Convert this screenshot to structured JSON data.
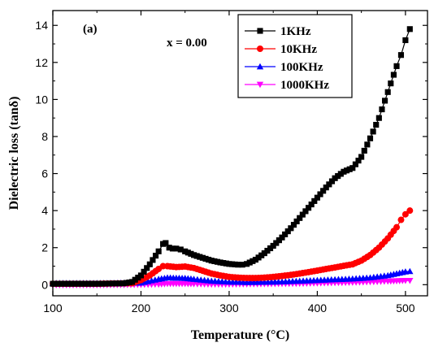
{
  "chart_data": {
    "type": "scatter",
    "panel_label": "(a)",
    "annotation": "x = 0.00",
    "xlabel": "Temperature (°C)",
    "ylabel": "Dielectric loss (tanδ)",
    "xlim": [
      100,
      525
    ],
    "ylim": [
      -0.6,
      14.8
    ],
    "xticks": [
      100,
      200,
      300,
      400,
      500
    ],
    "yticks": [
      0,
      2,
      4,
      6,
      8,
      10,
      12,
      14
    ],
    "grid": false,
    "legend_position": "top-right",
    "series": [
      {
        "name": "1KHz",
        "color": "#000000",
        "marker": "square",
        "x": [
          100,
          150,
          180,
          190,
          200,
          210,
          220,
          225,
          228,
          232,
          236,
          240,
          245,
          250,
          260,
          270,
          280,
          290,
          300,
          310,
          315,
          320,
          330,
          340,
          350,
          360,
          370,
          380,
          390,
          400,
          410,
          420,
          430,
          440,
          450,
          460,
          470,
          480,
          490,
          495,
          500,
          505
        ],
        "y": [
          0.05,
          0.05,
          0.07,
          0.15,
          0.5,
          1.1,
          1.8,
          2.2,
          2.25,
          2.0,
          1.95,
          1.95,
          1.9,
          1.8,
          1.6,
          1.45,
          1.3,
          1.2,
          1.12,
          1.08,
          1.08,
          1.12,
          1.35,
          1.7,
          2.1,
          2.55,
          3.05,
          3.6,
          4.15,
          4.7,
          5.25,
          5.75,
          6.1,
          6.3,
          6.9,
          7.9,
          9.0,
          10.4,
          11.8,
          12.4,
          13.2,
          13.8
        ]
      },
      {
        "name": "10KHz",
        "color": "#ff0000",
        "marker": "circle",
        "x": [
          100,
          150,
          190,
          200,
          210,
          220,
          225,
          230,
          240,
          250,
          260,
          270,
          280,
          290,
          300,
          310,
          320,
          330,
          340,
          350,
          360,
          370,
          380,
          390,
          400,
          410,
          420,
          430,
          440,
          450,
          460,
          470,
          480,
          490,
          495,
          500,
          505
        ],
        "y": [
          0.05,
          0.05,
          0.08,
          0.25,
          0.5,
          0.85,
          1.0,
          1.0,
          0.95,
          0.98,
          0.9,
          0.75,
          0.6,
          0.5,
          0.42,
          0.38,
          0.36,
          0.36,
          0.38,
          0.42,
          0.47,
          0.53,
          0.6,
          0.68,
          0.76,
          0.85,
          0.93,
          1.02,
          1.1,
          1.3,
          1.6,
          2.0,
          2.5,
          3.1,
          3.5,
          3.8,
          4.0
        ]
      },
      {
        "name": "100KHz",
        "color": "#0000ff",
        "marker": "triangle-up",
        "x": [
          100,
          150,
          200,
          220,
          230,
          240,
          250,
          260,
          280,
          300,
          320,
          340,
          360,
          380,
          400,
          420,
          440,
          460,
          480,
          490,
          500,
          505
        ],
        "y": [
          0.08,
          0.08,
          0.1,
          0.3,
          0.38,
          0.36,
          0.35,
          0.3,
          0.2,
          0.15,
          0.13,
          0.14,
          0.16,
          0.2,
          0.24,
          0.28,
          0.32,
          0.38,
          0.5,
          0.6,
          0.7,
          0.72
        ]
      },
      {
        "name": "1000KHz",
        "color": "#ff00ff",
        "marker": "triangle-down",
        "x": [
          100,
          150,
          200,
          220,
          230,
          240,
          250,
          260,
          280,
          300,
          320,
          340,
          360,
          380,
          400,
          420,
          440,
          460,
          480,
          490,
          500,
          505
        ],
        "y": [
          -0.02,
          -0.02,
          0.0,
          0.02,
          0.05,
          0.05,
          0.05,
          0.04,
          0.02,
          0.02,
          0.03,
          0.04,
          0.05,
          0.06,
          0.08,
          0.1,
          0.12,
          0.15,
          0.18,
          0.2,
          0.22,
          0.22
        ]
      }
    ]
  }
}
